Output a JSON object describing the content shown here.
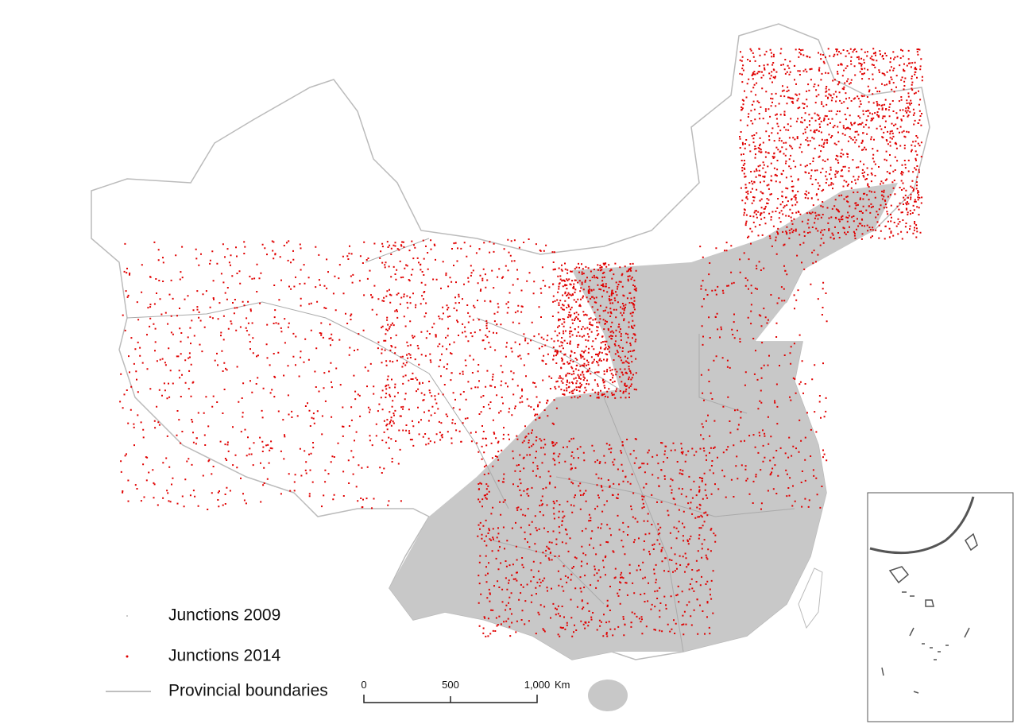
{
  "legend": {
    "items": [
      "Junctions 2009",
      "Junctions 2014",
      "Provincial boundaries"
    ]
  },
  "scale_bar": {
    "labels": [
      "0",
      "500",
      "1,000"
    ],
    "unit": "Km"
  }
}
